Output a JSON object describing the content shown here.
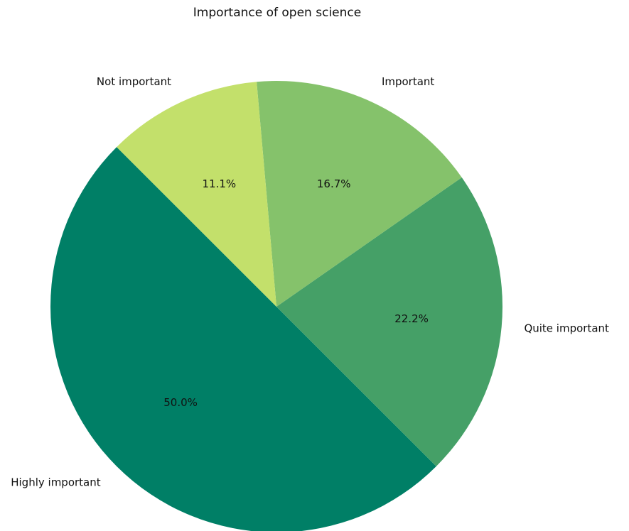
{
  "chart_data": {
    "type": "pie",
    "title": "Importance of open science",
    "categories": [
      "Highly important",
      "Quite important",
      "Important",
      "Not important"
    ],
    "values": [
      50.0,
      22.2,
      16.7,
      11.1
    ],
    "percent_labels": [
      "50.0%",
      "22.2%",
      "16.7%",
      "11.1%"
    ],
    "colors": [
      "#007f66",
      "#45a067",
      "#85c26b",
      "#c3e06b"
    ],
    "start_angle_deg": 135,
    "direction": "counterclockwise",
    "legend": "none"
  }
}
